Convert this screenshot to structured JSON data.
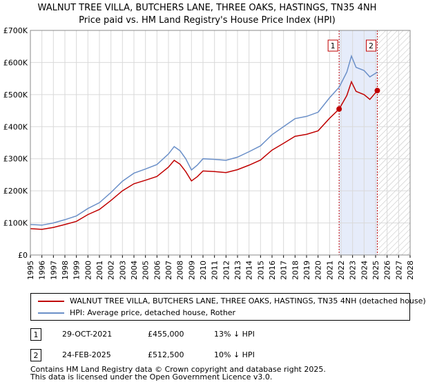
{
  "chart_data": {
    "type": "line",
    "title": "WALNUT TREE VILLA, BUTCHERS LANE, THREE OAKS, HASTINGS, TN35 4NH",
    "subtitle": "Price paid vs. HM Land Registry's House Price Index (HPI)",
    "xlim": [
      1995,
      2028
    ],
    "ylim": [
      0,
      700000
    ],
    "x_ticks": [
      "1995",
      "1996",
      "1997",
      "1998",
      "1999",
      "2000",
      "2001",
      "2002",
      "2003",
      "2004",
      "2005",
      "2006",
      "2007",
      "2008",
      "2009",
      "2010",
      "2011",
      "2012",
      "2013",
      "2014",
      "2015",
      "2016",
      "2017",
      "2018",
      "2019",
      "2020",
      "2021",
      "2022",
      "2023",
      "2024",
      "2025",
      "2026",
      "2027",
      "2028"
    ],
    "y_ticks": [
      {
        "value": 0,
        "label": "£0"
      },
      {
        "value": 100000,
        "label": "£100K"
      },
      {
        "value": 200000,
        "label": "£200K"
      },
      {
        "value": 300000,
        "label": "£300K"
      },
      {
        "value": 400000,
        "label": "£400K"
      },
      {
        "value": 500000,
        "label": "£500K"
      },
      {
        "value": 600000,
        "label": "£600K"
      },
      {
        "value": 700000,
        "label": "£700K"
      }
    ],
    "grid": true,
    "shaded_span": [
      2021.83,
      2025.15
    ],
    "future_hatch_from": 2025.15,
    "series": [
      {
        "name": "HPI: Average price, detached house, Rother",
        "color": "#6a8fc8",
        "points": [
          [
            1995,
            95000
          ],
          [
            1996,
            93000
          ],
          [
            1997,
            100000
          ],
          [
            1998,
            110000
          ],
          [
            1999,
            122000
          ],
          [
            2000,
            145000
          ],
          [
            2001,
            163000
          ],
          [
            2002,
            195000
          ],
          [
            2003,
            230000
          ],
          [
            2004,
            255000
          ],
          [
            2005,
            268000
          ],
          [
            2006,
            282000
          ],
          [
            2007,
            315000
          ],
          [
            2007.5,
            338000
          ],
          [
            2008,
            325000
          ],
          [
            2008.5,
            300000
          ],
          [
            2009,
            265000
          ],
          [
            2009.5,
            280000
          ],
          [
            2010,
            300000
          ],
          [
            2011,
            298000
          ],
          [
            2012,
            295000
          ],
          [
            2013,
            305000
          ],
          [
            2014,
            322000
          ],
          [
            2015,
            340000
          ],
          [
            2016,
            375000
          ],
          [
            2017,
            400000
          ],
          [
            2018,
            425000
          ],
          [
            2019,
            432000
          ],
          [
            2020,
            445000
          ],
          [
            2021,
            490000
          ],
          [
            2021.83,
            523000
          ],
          [
            2022.5,
            570000
          ],
          [
            2022.9,
            620000
          ],
          [
            2023.3,
            585000
          ],
          [
            2024,
            575000
          ],
          [
            2024.5,
            555000
          ],
          [
            2025.15,
            570000
          ]
        ]
      },
      {
        "name": "WALNUT TREE VILLA, BUTCHERS LANE, THREE OAKS, HASTINGS, TN35 4NH (detached house)",
        "color": "#c00000",
        "points": [
          [
            1995,
            82000
          ],
          [
            1996,
            80000
          ],
          [
            1997,
            86000
          ],
          [
            1998,
            95000
          ],
          [
            1999,
            105000
          ],
          [
            2000,
            126000
          ],
          [
            2001,
            142000
          ],
          [
            2002,
            170000
          ],
          [
            2003,
            200000
          ],
          [
            2004,
            222000
          ],
          [
            2005,
            233000
          ],
          [
            2006,
            245000
          ],
          [
            2007,
            274000
          ],
          [
            2007.5,
            295000
          ],
          [
            2008,
            283000
          ],
          [
            2008.5,
            260000
          ],
          [
            2009,
            231000
          ],
          [
            2009.5,
            244000
          ],
          [
            2010,
            262000
          ],
          [
            2011,
            260000
          ],
          [
            2012,
            257000
          ],
          [
            2013,
            266000
          ],
          [
            2014,
            280000
          ],
          [
            2015,
            296000
          ],
          [
            2016,
            327000
          ],
          [
            2017,
            348000
          ],
          [
            2018,
            370000
          ],
          [
            2019,
            376000
          ],
          [
            2020,
            387000
          ],
          [
            2021,
            426000
          ],
          [
            2021.83,
            455000
          ],
          [
            2022.5,
            497000
          ],
          [
            2022.9,
            540000
          ],
          [
            2023.3,
            510000
          ],
          [
            2024,
            500000
          ],
          [
            2024.5,
            485000
          ],
          [
            2025.15,
            512500
          ]
        ]
      }
    ],
    "sales": [
      {
        "id": "1",
        "x": 2021.83,
        "price": 455000
      },
      {
        "id": "2",
        "x": 2025.15,
        "price": 512500
      }
    ]
  },
  "legend": {
    "property_label": "WALNUT TREE VILLA, BUTCHERS LANE, THREE OAKS, HASTINGS, TN35 4NH (detached house)",
    "hpi_label": "HPI: Average price, detached house, Rother",
    "property_color": "#c00000",
    "hpi_color": "#6a8fc8"
  },
  "sales_table": [
    {
      "id": "1",
      "date": "29-OCT-2021",
      "price": "£455,000",
      "hpi": "13% ↓ HPI"
    },
    {
      "id": "2",
      "date": "24-FEB-2025",
      "price": "£512,500",
      "hpi": "10% ↓ HPI"
    }
  ],
  "footer": {
    "line1": "Contains HM Land Registry data © Crown copyright and database right 2025.",
    "line2": "This data is licensed under the Open Government Licence v3.0."
  }
}
